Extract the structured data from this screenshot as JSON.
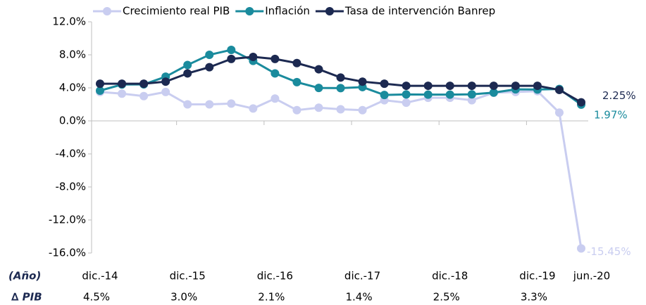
{
  "chart_data": {
    "type": "line",
    "categories": [
      "dic.-14",
      null,
      null,
      null,
      "dic.-15",
      null,
      null,
      null,
      "dic.-16",
      null,
      null,
      null,
      "dic.-17",
      null,
      null,
      null,
      "dic.-18",
      null,
      null,
      null,
      "dic.-19",
      null,
      "jun.-20"
    ],
    "series": [
      {
        "name": "Crecimiento real PIB",
        "color": "#c9cdf0",
        "values": [
          3.5,
          3.3,
          3.0,
          3.5,
          2.0,
          2.0,
          2.1,
          1.5,
          2.7,
          1.3,
          1.6,
          1.4,
          1.3,
          2.5,
          2.2,
          2.8,
          2.8,
          2.5,
          3.4,
          3.5,
          3.6,
          1.0,
          -15.45
        ],
        "end_label": "-15.45%"
      },
      {
        "name": "Inflación",
        "color": "#1a8b9d",
        "values": [
          3.66,
          4.4,
          4.42,
          5.35,
          6.77,
          8.0,
          8.6,
          7.27,
          5.75,
          4.69,
          3.99,
          3.97,
          4.09,
          3.14,
          3.2,
          3.18,
          3.18,
          3.21,
          3.43,
          3.82,
          3.8,
          3.86,
          1.97
        ],
        "end_label": "1.97%"
      },
      {
        "name": "Tasa de intervención Banrep",
        "color": "#1c2951",
        "values": [
          4.5,
          4.5,
          4.5,
          4.75,
          5.75,
          6.5,
          7.5,
          7.75,
          7.5,
          7.0,
          6.25,
          5.25,
          4.75,
          4.5,
          4.25,
          4.25,
          4.25,
          4.25,
          4.25,
          4.25,
          4.25,
          3.75,
          2.25
        ],
        "end_label": "2.25%"
      }
    ],
    "ylim": [
      -16,
      12
    ],
    "yticks": [
      {
        "value": -16,
        "label": "-16.0%"
      },
      {
        "value": -12,
        "label": "-12.0%"
      },
      {
        "value": -8,
        "label": "-8.0%"
      },
      {
        "value": -4,
        "label": "-4.0%"
      },
      {
        "value": 0,
        "label": "0.0%"
      },
      {
        "value": 4,
        "label": "4.0%"
      },
      {
        "value": 8,
        "label": "8.0%"
      },
      {
        "value": 12,
        "label": "12.0%"
      }
    ],
    "legend": "top",
    "table": {
      "header": "(Año)",
      "row_label": "∆ PIB",
      "values": [
        4.5,
        3.0,
        2.1,
        1.4,
        2.5,
        3.3
      ],
      "value_labels": [
        "4.5%",
        "3.0%",
        "2.1%",
        "1.4%",
        "2.5%",
        "3.3%"
      ]
    }
  }
}
